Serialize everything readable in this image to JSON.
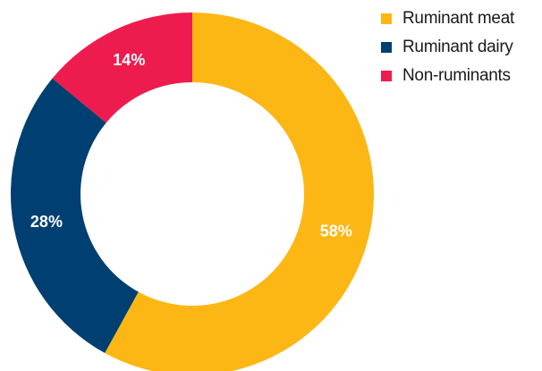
{
  "chart_data": {
    "type": "pie",
    "donut": true,
    "categories": [
      "Ruminant meat",
      "Ruminant dairy",
      "Non-ruminants"
    ],
    "values": [
      58,
      28,
      14
    ],
    "value_labels": [
      "58%",
      "28%",
      "14%"
    ],
    "colors": [
      "#FDB714",
      "#003F72",
      "#EE1C4E"
    ],
    "start_angle_deg": 0,
    "direction": "clockwise",
    "legend_position": "top-right",
    "title": ""
  },
  "legend": {
    "items": [
      {
        "label": "Ruminant meat",
        "color": "#FDB714"
      },
      {
        "label": "Ruminant dairy",
        "color": "#003F72"
      },
      {
        "label": "Non-ruminants",
        "color": "#EE1C4E"
      }
    ]
  }
}
